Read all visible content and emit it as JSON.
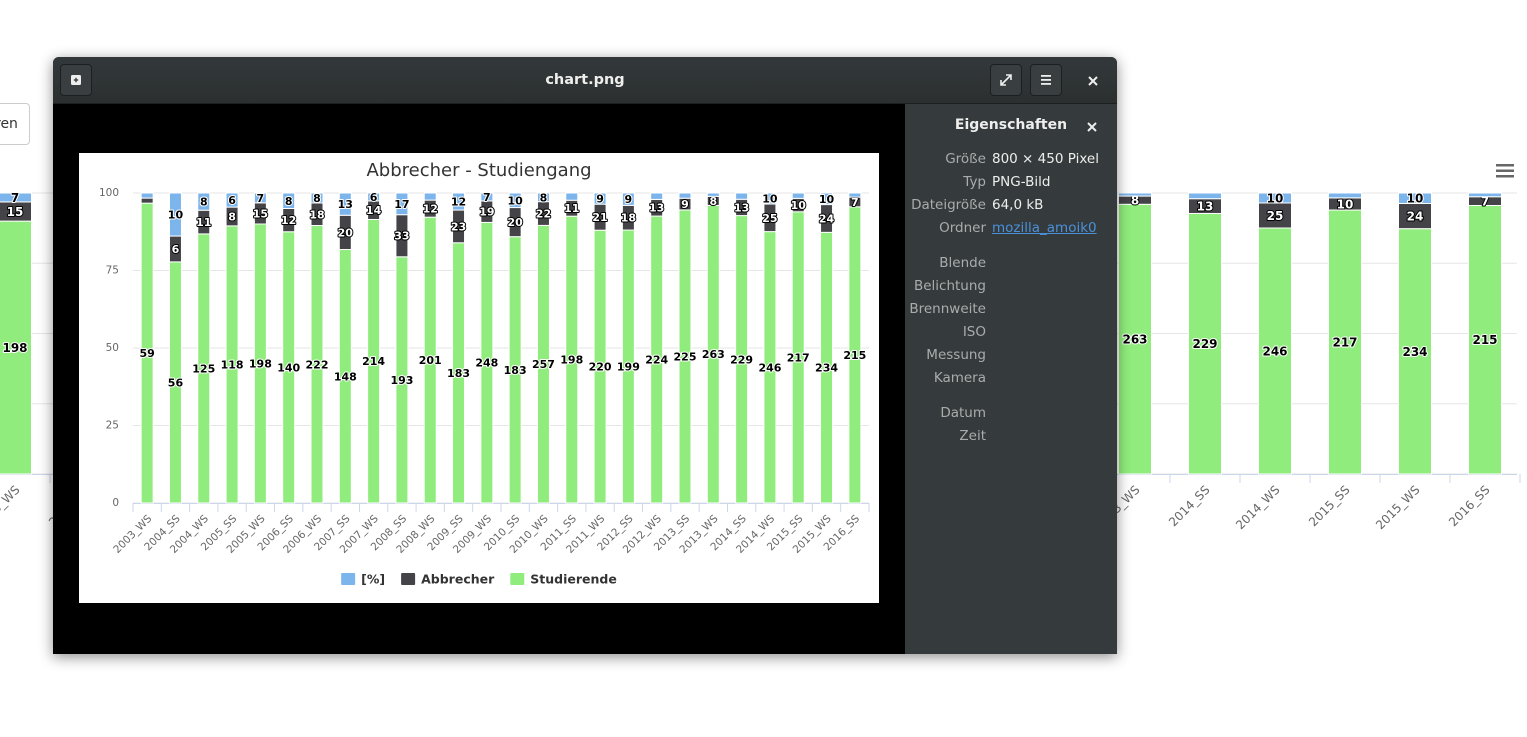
{
  "window": {
    "title": "chart.png"
  },
  "background": {
    "button": "ren"
  },
  "properties": {
    "heading": "Eigenschaften",
    "groups": [
      [
        {
          "label": "Größe",
          "value": "800 × 450 Pixel"
        },
        {
          "label": "Typ",
          "value": "PNG-Bild"
        },
        {
          "label": "Dateigröße",
          "value": "64,0 kB"
        },
        {
          "label": "Ordner",
          "value": "mozilla_amoik0",
          "link": true
        }
      ],
      [
        {
          "label": "Blende"
        },
        {
          "label": "Belichtung"
        },
        {
          "label": "Brennweite"
        },
        {
          "label": "ISO"
        },
        {
          "label": "Messung"
        },
        {
          "label": "Kamera"
        }
      ],
      [
        {
          "label": "Datum"
        },
        {
          "label": "Zeit"
        }
      ]
    ]
  },
  "chart_data": {
    "type": "bar",
    "stacking": "percent",
    "title": "Abbrecher - Studiengang",
    "categories": [
      "2003_WS",
      "2004_SS",
      "2004_WS",
      "2005_SS",
      "2005_WS",
      "2006_SS",
      "2006_WS",
      "2007_SS",
      "2007_WS",
      "2008_SS",
      "2008_WS",
      "2009_SS",
      "2009_WS",
      "2010_SS",
      "2010_WS",
      "2011_SS",
      "2011_WS",
      "2012_SS",
      "2012_WS",
      "2013_SS",
      "2013_WS",
      "2014_SS",
      "2014_WS",
      "2015_SS",
      "2015_WS",
      "2016_SS"
    ],
    "series": [
      {
        "name": "[%]",
        "color": "#7cb5ec",
        "values": [
          1,
          10,
          8,
          6,
          7,
          8,
          8,
          13,
          6,
          17,
          5,
          12,
          7,
          10,
          8,
          5,
          9,
          9,
          5,
          4,
          3,
          5,
          10,
          4,
          10,
          3
        ]
      },
      {
        "name": "Abbrecher",
        "color": "#434348",
        "values": [
          1,
          6,
          11,
          8,
          15,
          12,
          18,
          20,
          14,
          33,
          12,
          23,
          19,
          20,
          22,
          11,
          21,
          18,
          13,
          9,
          8,
          13,
          25,
          10,
          24,
          7
        ]
      },
      {
        "name": "Studierende",
        "color": "#90ed7d",
        "values": [
          59,
          56,
          125,
          118,
          198,
          140,
          222,
          148,
          214,
          193,
          201,
          183,
          248,
          183,
          257,
          198,
          220,
          199,
          224,
          225,
          263,
          229,
          246,
          217,
          234,
          215
        ]
      }
    ],
    "ylim": [
      0,
      100
    ],
    "yticks": [
      0,
      25,
      50,
      75,
      100
    ],
    "grid": true,
    "legend": "bottom"
  }
}
